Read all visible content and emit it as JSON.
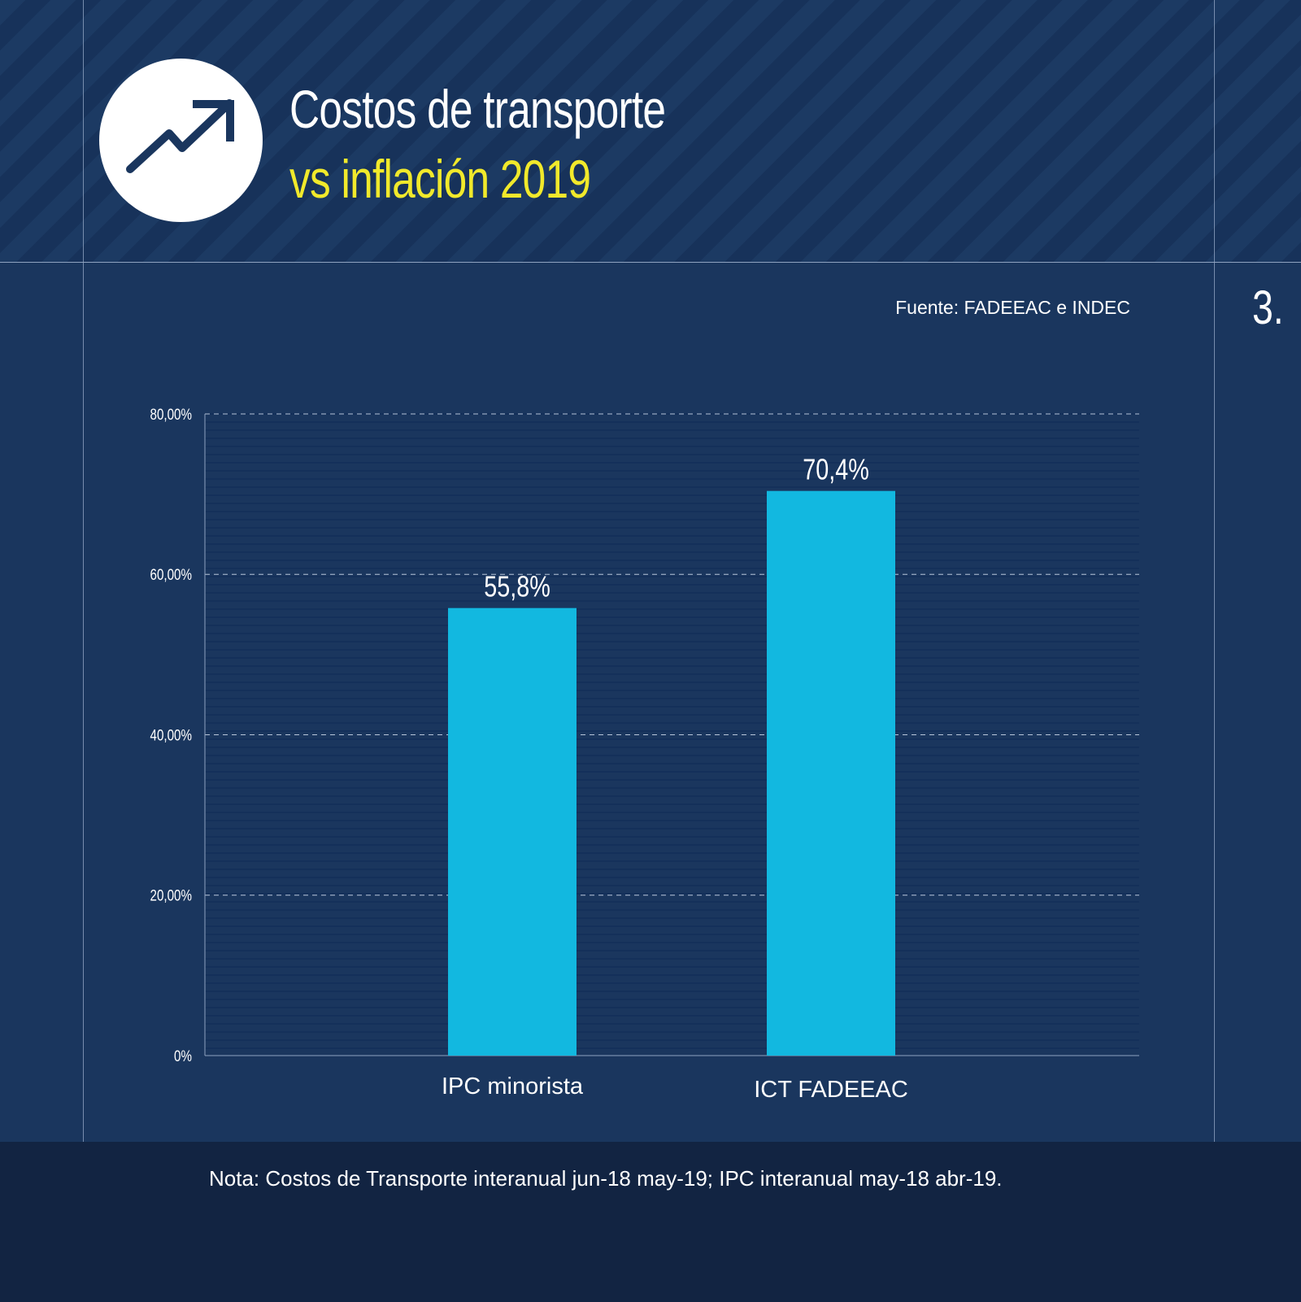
{
  "header": {
    "title_line1": "Costos de transporte",
    "title_line2": "vs inflación 2019",
    "icon": "trending-up-icon"
  },
  "source": "Fuente: FADEEAC e INDEC",
  "page_number": "3.",
  "note": "Nota: Costos de Transporte interanual jun-18 may-19; IPC interanual may-18 abr-19.",
  "colors": {
    "background": "#1a365e",
    "bar": "#12b8e0",
    "title_accent": "#f1e92b",
    "footer": "#122442"
  },
  "chart_data": {
    "type": "bar",
    "categories": [
      "IPC minorista",
      "ICT FADEEAC"
    ],
    "values": [
      55.8,
      70.4
    ],
    "data_labels": [
      "55,8%",
      "70,4%"
    ],
    "ylim": [
      0,
      80
    ],
    "yticks": [
      0,
      20,
      40,
      60,
      80
    ],
    "ytick_labels": [
      "0%",
      "20,00%",
      "40,00%",
      "60,00%",
      "80,00%"
    ],
    "grid": true,
    "xlabel": "",
    "ylabel": ""
  }
}
